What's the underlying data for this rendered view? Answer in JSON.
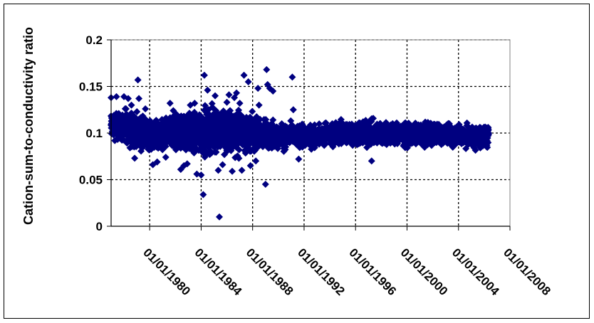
{
  "chart_data": {
    "type": "scatter",
    "title": "",
    "xlabel": "",
    "ylabel": "Cation-sum-to-conductivity ratio",
    "x_axis": "date",
    "xlim": [
      "1977-01-01",
      "2008-01-01"
    ],
    "ylim": [
      0,
      0.2
    ],
    "x_ticks": [
      "01/01/1980",
      "01/01/1984",
      "01/01/1988",
      "01/01/1992",
      "01/01/1996",
      "01/01/2000",
      "01/01/2004",
      "01/01/2008"
    ],
    "y_ticks": [
      "0",
      "0.05",
      "0.1",
      "0.15",
      "0.2"
    ],
    "grid": true,
    "legend": "none",
    "marker_color": "#000080",
    "marker": "diamond",
    "series": [
      {
        "points": [
          [
            "1977-01-01",
            0.138
          ],
          [
            "1977-06-01",
            0.139
          ],
          [
            "1977-10-01",
            0.118
          ],
          [
            "1978-01-01",
            0.139
          ],
          [
            "1978-03-01",
            0.126
          ],
          [
            "1978-05-01",
            0.137
          ],
          [
            "1978-08-01",
            0.13
          ],
          [
            "1978-11-01",
            0.073
          ],
          [
            "1979-02-01",
            0.157
          ],
          [
            "1979-03-01",
            0.137
          ],
          [
            "1979-06-01",
            0.084
          ],
          [
            "1979-09-01",
            0.126
          ],
          [
            "1980-04-01",
            0.066
          ],
          [
            "1980-08-01",
            0.069
          ],
          [
            "1981-04-01",
            0.074
          ],
          [
            "1981-08-01",
            0.132
          ],
          [
            "1981-11-01",
            0.124
          ],
          [
            "1982-06-01",
            0.061
          ],
          [
            "1982-09-01",
            0.065
          ],
          [
            "1982-12-01",
            0.067
          ],
          [
            "1983-03-01",
            0.13
          ],
          [
            "1983-07-01",
            0.132
          ],
          [
            "1983-09-01",
            0.056
          ],
          [
            "1984-01-01",
            0.055
          ],
          [
            "1984-03-01",
            0.034
          ],
          [
            "1984-04-01",
            0.162
          ],
          [
            "1984-07-01",
            0.146
          ],
          [
            "1984-09-01",
            0.077
          ],
          [
            "1985-02-01",
            0.14
          ],
          [
            "1985-05-01",
            0.06
          ],
          [
            "1985-06-01",
            0.01
          ],
          [
            "1985-09-01",
            0.066
          ],
          [
            "1986-01-01",
            0.133
          ],
          [
            "1986-03-01",
            0.141
          ],
          [
            "1986-06-01",
            0.059
          ],
          [
            "1986-08-01",
            0.138
          ],
          [
            "1986-10-01",
            0.143
          ],
          [
            "1987-01-01",
            0.132
          ],
          [
            "1987-03-01",
            0.06
          ],
          [
            "1987-05-01",
            0.162
          ],
          [
            "1987-09-01",
            0.155
          ],
          [
            "1987-11-01",
            0.065
          ],
          [
            "1988-04-01",
            0.07
          ],
          [
            "1988-06-01",
            0.148
          ],
          [
            "1988-07-01",
            0.13
          ],
          [
            "1989-01-01",
            0.045
          ],
          [
            "1989-02-01",
            0.168
          ],
          [
            "1989-03-01",
            0.152
          ],
          [
            "1989-05-01",
            0.148
          ],
          [
            "1989-08-01",
            0.145
          ],
          [
            "1991-02-01",
            0.16
          ],
          [
            "1991-03-01",
            0.125
          ],
          [
            "1991-08-01",
            0.072
          ],
          [
            "1997-04-01",
            0.07
          ]
        ]
      }
    ],
    "density_bands": [
      [
        "1977-01-01",
        0.088,
        0.128
      ],
      [
        "1978-01-01",
        0.085,
        0.128
      ],
      [
        "1979-01-01",
        0.078,
        0.126
      ],
      [
        "1980-01-01",
        0.075,
        0.12
      ],
      [
        "1981-01-01",
        0.078,
        0.122
      ],
      [
        "1982-01-01",
        0.072,
        0.124
      ],
      [
        "1983-01-01",
        0.072,
        0.13
      ],
      [
        "1984-01-01",
        0.068,
        0.135
      ],
      [
        "1985-01-01",
        0.068,
        0.138
      ],
      [
        "1986-01-01",
        0.066,
        0.138
      ],
      [
        "1987-01-01",
        0.07,
        0.13
      ],
      [
        "1988-01-01",
        0.075,
        0.125
      ],
      [
        "1989-01-01",
        0.076,
        0.12
      ],
      [
        "1990-01-01",
        0.078,
        0.115
      ],
      [
        "1991-01-01",
        0.08,
        0.114
      ],
      [
        "1992-01-01",
        0.08,
        0.112
      ],
      [
        "1993-01-01",
        0.082,
        0.112
      ],
      [
        "1994-01-01",
        0.083,
        0.115
      ],
      [
        "1995-01-01",
        0.083,
        0.118
      ],
      [
        "1996-01-01",
        0.082,
        0.118
      ],
      [
        "1997-01-01",
        0.08,
        0.118
      ],
      [
        "1998-01-01",
        0.082,
        0.116
      ],
      [
        "1999-01-01",
        0.083,
        0.116
      ],
      [
        "2000-01-01",
        0.082,
        0.115
      ],
      [
        "2001-01-01",
        0.084,
        0.114
      ],
      [
        "2002-01-01",
        0.084,
        0.114
      ],
      [
        "2003-01-01",
        0.083,
        0.114
      ],
      [
        "2004-01-01",
        0.082,
        0.114
      ],
      [
        "2005-01-01",
        0.08,
        0.112
      ],
      [
        "2006-01-01",
        0.08,
        0.112
      ]
    ],
    "density_end": "2006-05-01"
  }
}
